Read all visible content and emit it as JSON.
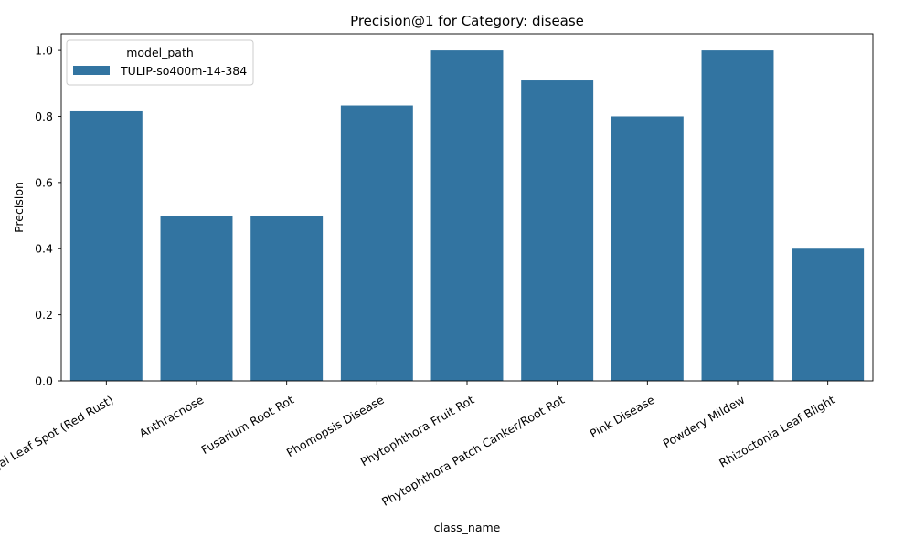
{
  "chart_data": {
    "type": "bar",
    "title": "Precision@1 for Category: disease",
    "xlabel": "class_name",
    "ylabel": "Precision",
    "categories": [
      "Algal Leaf Spot (Red Rust)",
      "Anthracnose",
      "Fusarium Root Rot",
      "Phomopsis Disease",
      "Phytophthora Fruit Rot",
      "Phytophthora Patch Canker/Root Rot",
      "Pink Disease",
      "Powdery Mildew",
      "Rhizoctonia Leaf Blight"
    ],
    "series": [
      {
        "name": "TULIP-so400m-14-384",
        "color": "#3274a1",
        "values": [
          0.818,
          0.5,
          0.5,
          0.833,
          1.0,
          0.909,
          0.8,
          1.0,
          0.4
        ]
      }
    ],
    "ylim": [
      0,
      1.05
    ],
    "yticks": [
      "0.0",
      "0.2",
      "0.4",
      "0.6",
      "0.8",
      "1.0"
    ],
    "grid": false,
    "legend": {
      "title": "model_path",
      "placement": "top-left"
    }
  }
}
